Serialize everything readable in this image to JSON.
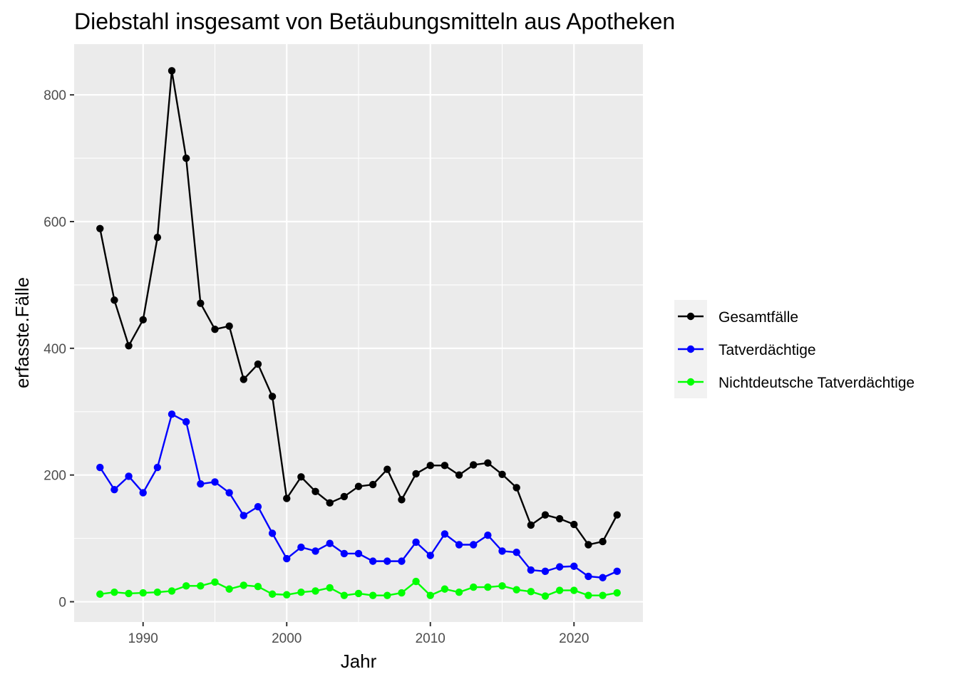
{
  "chart_data": {
    "type": "line",
    "title": "Diebstahl insgesamt von Betäubungsmitteln aus Apotheken",
    "xlabel": "Jahr",
    "ylabel": "erfasste.Fälle",
    "xlim": [
      1985.2,
      2024.8
    ],
    "ylim": [
      -32,
      880
    ],
    "x_ticks": [
      "1990",
      "2000",
      "2010",
      "2020"
    ],
    "x_tick_values": [
      1990,
      2000,
      2010,
      2020
    ],
    "y_ticks": [
      "0",
      "200",
      "400",
      "600",
      "800"
    ],
    "y_tick_values": [
      0,
      200,
      400,
      600,
      800
    ],
    "grid": true,
    "legend_position": "right",
    "x": [
      1987,
      1988,
      1989,
      1990,
      1991,
      1992,
      1993,
      1994,
      1995,
      1996,
      1997,
      1998,
      1999,
      2000,
      2001,
      2002,
      2003,
      2004,
      2005,
      2006,
      2007,
      2008,
      2009,
      2010,
      2011,
      2012,
      2013,
      2014,
      2015,
      2016,
      2017,
      2018,
      2019,
      2020,
      2021,
      2022,
      2023
    ],
    "series": [
      {
        "name": "Gesamtfälle",
        "color": "#000000",
        "values": [
          589,
          476,
          404,
          445,
          575,
          838,
          700,
          471,
          430,
          435,
          351,
          375,
          324,
          163,
          197,
          174,
          156,
          166,
          182,
          185,
          209,
          161,
          202,
          215,
          215,
          200,
          216,
          219,
          201,
          180,
          121,
          137,
          131,
          122,
          90,
          95,
          137
        ]
      },
      {
        "name": "Tatverdächtige",
        "color": "#0000ff",
        "values": [
          212,
          177,
          198,
          172,
          212,
          296,
          284,
          186,
          189,
          172,
          136,
          150,
          108,
          68,
          86,
          80,
          92,
          76,
          76,
          64,
          64,
          64,
          94,
          73,
          107,
          90,
          90,
          105,
          80,
          78,
          50,
          48,
          55,
          56,
          40,
          38,
          48
        ]
      },
      {
        "name": "Nichtdeutsche Tatverdächtige",
        "color": "#00ff00",
        "values": [
          12,
          15,
          13,
          14,
          15,
          17,
          25,
          25,
          31,
          20,
          26,
          24,
          12,
          11,
          15,
          17,
          22,
          10,
          13,
          10,
          10,
          14,
          32,
          10,
          20,
          15,
          23,
          23,
          25,
          19,
          16,
          9,
          18,
          18,
          10,
          10,
          14
        ]
      }
    ]
  }
}
